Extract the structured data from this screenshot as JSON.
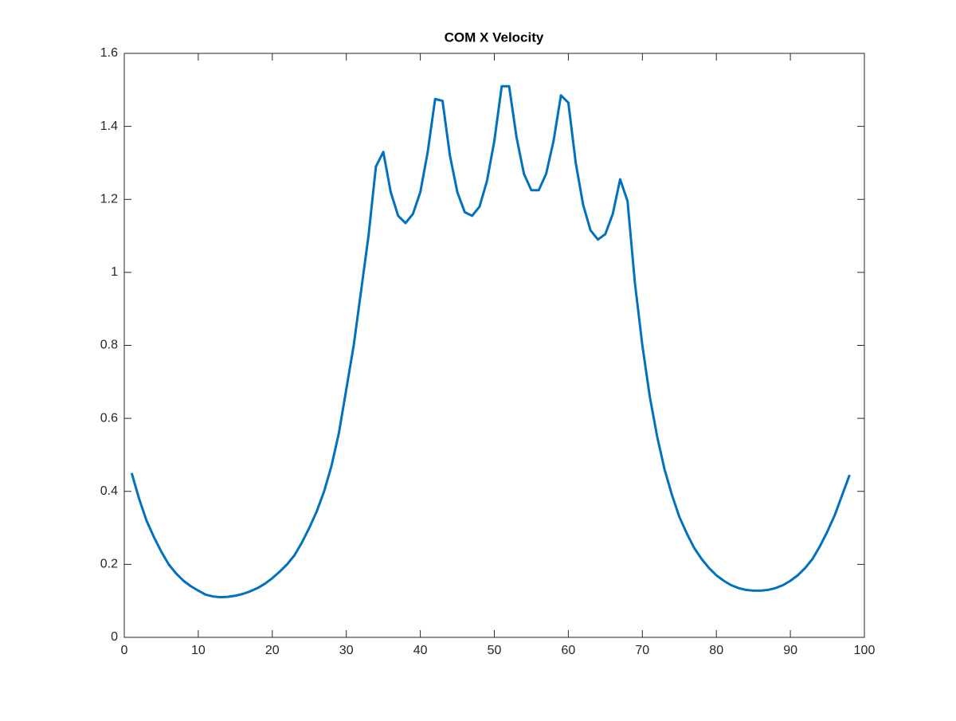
{
  "chart_data": {
    "type": "line",
    "title": "COM X Velocity",
    "x": [
      1,
      2,
      3,
      4,
      5,
      6,
      7,
      8,
      9,
      10,
      11,
      12,
      13,
      14,
      15,
      16,
      17,
      18,
      19,
      20,
      21,
      22,
      23,
      24,
      25,
      26,
      27,
      28,
      29,
      30,
      31,
      32,
      33,
      34,
      35,
      36,
      37,
      38,
      39,
      40,
      41,
      42,
      43,
      44,
      45,
      46,
      47,
      48,
      49,
      50,
      51,
      52,
      53,
      54,
      55,
      56,
      57,
      58,
      59,
      60,
      61,
      62,
      63,
      64,
      65,
      66,
      67,
      68,
      69,
      70,
      71,
      72,
      73,
      74,
      75,
      76,
      77,
      78,
      79,
      80,
      81,
      82,
      83,
      84,
      85,
      86,
      87,
      88,
      89,
      90,
      91,
      92,
      93,
      94,
      95,
      96,
      97,
      98
    ],
    "series": [
      {
        "color": "#0072bd",
        "values": [
          0.45,
          0.38,
          0.32,
          0.275,
          0.235,
          0.2,
          0.175,
          0.155,
          0.14,
          0.128,
          0.117,
          0.112,
          0.11,
          0.111,
          0.114,
          0.119,
          0.126,
          0.135,
          0.147,
          0.162,
          0.18,
          0.2,
          0.225,
          0.26,
          0.3,
          0.345,
          0.4,
          0.47,
          0.56,
          0.68,
          0.8,
          0.95,
          1.1,
          1.29,
          1.33,
          1.22,
          1.155,
          1.135,
          1.16,
          1.22,
          1.33,
          1.475,
          1.47,
          1.32,
          1.22,
          1.165,
          1.155,
          1.18,
          1.25,
          1.36,
          1.51,
          1.51,
          1.37,
          1.27,
          1.225,
          1.225,
          1.27,
          1.36,
          1.485,
          1.465,
          1.3,
          1.185,
          1.115,
          1.09,
          1.105,
          1.16,
          1.255,
          1.195,
          0.97,
          0.8,
          0.66,
          0.55,
          0.46,
          0.39,
          0.33,
          0.285,
          0.245,
          0.215,
          0.19,
          0.17,
          0.155,
          0.143,
          0.135,
          0.13,
          0.128,
          0.128,
          0.13,
          0.135,
          0.143,
          0.155,
          0.17,
          0.19,
          0.215,
          0.25,
          0.29,
          0.335,
          0.39,
          0.445
        ]
      }
    ],
    "xlim": [
      0,
      100
    ],
    "xticks": [
      0,
      10,
      20,
      30,
      40,
      50,
      60,
      70,
      80,
      90,
      100
    ],
    "ylim": [
      0,
      1.6
    ],
    "yticks": [
      0,
      0.2,
      0.4,
      0.6,
      0.8,
      1,
      1.2,
      1.4,
      1.6
    ]
  }
}
